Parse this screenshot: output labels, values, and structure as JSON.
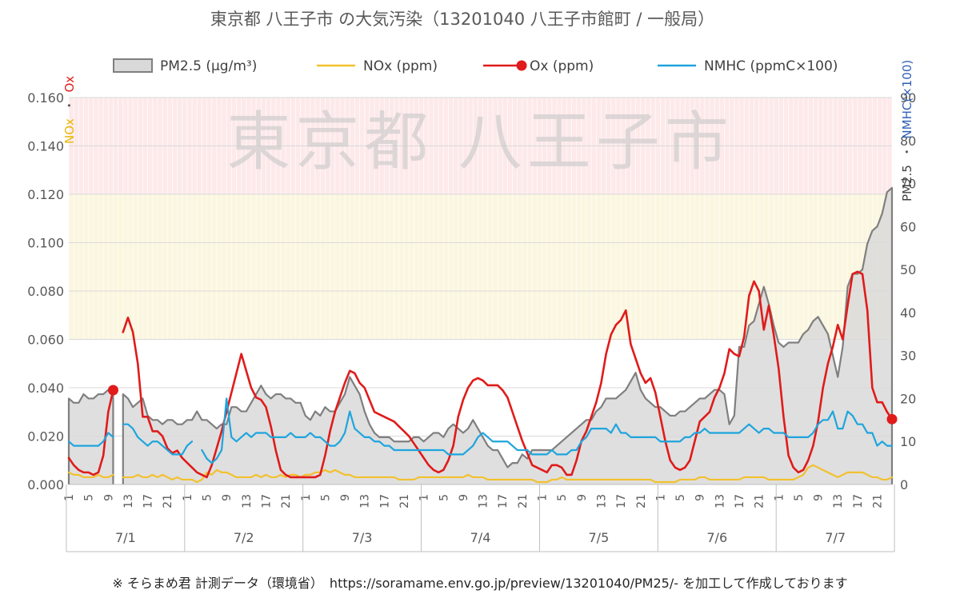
{
  "chart_data": {
    "type": "line",
    "title": "東京都 八王子市 の大気汚染（13201040 八王子市館町 / 一般局）",
    "watermark": "東京都 八王子市",
    "footer": "※ そらまめ君 計測データ（環境省）　https://soramame.env.go.jp/preview/13201040/PM25/- を加工して作成しております",
    "left_axis": {
      "label_part1": "NOx",
      "label_sep": "・",
      "label_part2": "Ox",
      "ylim": [
        0,
        0.16
      ],
      "ticks": [
        "0.000",
        "0.020",
        "0.040",
        "0.060",
        "0.080",
        "0.100",
        "0.120",
        "0.140",
        "0.160"
      ]
    },
    "right_axis": {
      "label_part1": "PM2.5",
      "label_sep": "・",
      "label_part2": "NMHC(×100)",
      "ylim": [
        0,
        90
      ],
      "ticks": [
        "0",
        "10",
        "20",
        "30",
        "40",
        "50",
        "60",
        "70",
        "80",
        "90"
      ]
    },
    "x_hour_ticks": [
      "1",
      "5",
      "9",
      "13",
      "17",
      "21"
    ],
    "days": [
      "7/1",
      "7/2",
      "7/3",
      "7/4",
      "7/5",
      "7/6",
      "7/7"
    ],
    "hours_per_day": 24,
    "bands": [
      {
        "from": 0.12,
        "to": 0.16,
        "color": "#fde9ea"
      },
      {
        "from": 0.06,
        "to": 0.12,
        "color": "#fbf6df"
      }
    ],
    "series": [
      {
        "name": "PM2.5 (µg/m³)",
        "axis": "right",
        "style": "area",
        "color": "#7f7f7f",
        "fill": "#d9d9d9",
        "values": [
          20,
          19,
          19,
          21,
          20,
          20,
          21,
          21,
          22,
          22,
          null,
          21,
          20,
          18,
          19,
          20,
          16,
          15,
          15,
          14,
          15,
          15,
          14,
          14,
          15,
          15,
          17,
          15,
          15,
          14,
          13,
          14,
          14,
          18,
          18,
          17,
          17,
          19,
          21,
          23,
          21,
          20,
          21,
          21,
          20,
          20,
          19,
          19,
          16,
          15,
          17,
          16,
          18,
          17,
          17,
          19,
          21,
          25,
          23,
          21,
          17,
          14,
          12,
          11,
          11,
          11,
          10,
          10,
          10,
          10,
          11,
          11,
          10,
          11,
          12,
          12,
          11,
          13,
          14,
          13,
          12,
          13,
          15,
          13,
          11,
          9,
          8,
          8,
          6,
          4,
          5,
          5,
          7,
          6,
          8,
          8,
          8,
          8,
          8,
          9,
          10,
          11,
          12,
          13,
          14,
          15,
          15,
          17,
          18,
          20,
          20,
          20,
          21,
          22,
          24,
          26,
          22,
          20,
          19,
          18,
          18,
          17,
          16,
          16,
          17,
          17,
          18,
          19,
          20,
          20,
          21,
          22,
          22,
          21,
          14,
          16,
          32,
          32,
          37,
          38,
          42,
          46,
          42,
          37,
          33,
          32,
          33,
          33,
          33,
          35,
          36,
          38,
          39,
          37,
          35,
          30,
          25,
          32,
          46,
          49,
          49,
          50,
          56,
          59,
          60,
          63,
          68,
          69
        ]
      },
      {
        "name": "NOx (ppm)",
        "axis": "left",
        "style": "line",
        "color": "#f2c12e",
        "values": [
          0.005,
          0.004,
          0.004,
          0.003,
          0.003,
          0.003,
          0.004,
          0.003,
          0.003,
          0.004,
          null,
          0.003,
          0.003,
          0.003,
          0.004,
          0.003,
          0.003,
          0.004,
          0.003,
          0.004,
          0.003,
          0.002,
          0.003,
          0.002,
          0.002,
          0.002,
          0.001,
          0.002,
          0.005,
          0.004,
          0.006,
          0.005,
          0.005,
          0.004,
          0.003,
          0.003,
          0.003,
          0.003,
          0.004,
          0.003,
          0.004,
          0.003,
          0.003,
          0.004,
          0.003,
          0.004,
          0.004,
          0.003,
          0.004,
          0.004,
          0.005,
          0.005,
          0.006,
          0.005,
          0.006,
          0.005,
          0.004,
          0.004,
          0.003,
          0.003,
          0.003,
          0.003,
          0.003,
          0.003,
          0.003,
          0.003,
          0.003,
          0.002,
          0.002,
          0.002,
          0.002,
          0.003,
          0.003,
          0.003,
          0.003,
          0.003,
          0.003,
          0.003,
          0.003,
          0.003,
          0.003,
          0.004,
          0.003,
          0.003,
          0.003,
          0.002,
          0.002,
          0.002,
          0.002,
          0.002,
          0.002,
          0.002,
          0.002,
          0.002,
          0.002,
          0.001,
          0.001,
          0.001,
          0.002,
          0.002,
          0.003,
          0.002,
          0.002,
          0.002,
          0.002,
          0.002,
          0.002,
          0.002,
          0.002,
          0.002,
          0.002,
          0.002,
          0.002,
          0.002,
          0.002,
          0.002,
          0.002,
          0.002,
          0.002,
          0.001,
          0.001,
          0.001,
          0.001,
          0.001,
          0.002,
          0.002,
          0.002,
          0.002,
          0.003,
          0.003,
          0.002,
          0.002,
          0.002,
          0.002,
          0.002,
          0.002,
          0.002,
          0.003,
          0.003,
          0.003,
          0.003,
          0.003,
          0.002,
          0.002,
          0.002,
          0.002,
          0.002,
          0.002,
          0.003,
          0.004,
          0.007,
          0.008,
          0.007,
          0.006,
          0.005,
          0.004,
          0.003,
          0.004,
          0.005,
          0.005,
          0.005,
          0.005,
          0.004,
          0.003,
          0.003,
          0.002,
          0.002,
          0.003
        ]
      },
      {
        "name": "Ox (ppm)",
        "axis": "left",
        "style": "line",
        "color": "#e01b1b",
        "marker_ends": true,
        "values": [
          0.011,
          0.008,
          0.006,
          0.005,
          0.005,
          0.004,
          0.005,
          0.012,
          0.03,
          0.039,
          null,
          0.063,
          0.069,
          0.063,
          0.05,
          0.028,
          0.028,
          0.022,
          0.022,
          0.02,
          0.015,
          0.013,
          0.014,
          0.011,
          0.009,
          0.007,
          0.005,
          0.004,
          0.003,
          0.008,
          0.015,
          0.022,
          0.03,
          0.038,
          0.046,
          0.054,
          0.047,
          0.04,
          0.036,
          0.035,
          0.032,
          0.024,
          0.014,
          0.006,
          0.004,
          0.003,
          0.003,
          0.003,
          0.003,
          0.003,
          0.003,
          0.004,
          0.012,
          0.022,
          0.03,
          0.036,
          0.042,
          0.047,
          0.046,
          0.042,
          0.04,
          0.035,
          0.03,
          0.029,
          0.028,
          0.027,
          0.026,
          0.024,
          0.022,
          0.02,
          0.017,
          0.014,
          0.011,
          0.008,
          0.006,
          0.005,
          0.006,
          0.01,
          0.016,
          0.028,
          0.035,
          0.04,
          0.043,
          0.044,
          0.043,
          0.041,
          0.041,
          0.041,
          0.039,
          0.036,
          0.03,
          0.024,
          0.018,
          0.013,
          0.008,
          0.007,
          0.006,
          0.005,
          0.008,
          0.008,
          0.007,
          0.004,
          0.004,
          0.01,
          0.018,
          0.022,
          0.028,
          0.034,
          0.042,
          0.054,
          0.062,
          0.066,
          0.068,
          0.072,
          0.058,
          0.052,
          0.046,
          0.042,
          0.044,
          0.038,
          0.028,
          0.018,
          0.01,
          0.007,
          0.006,
          0.007,
          0.01,
          0.018,
          0.026,
          0.028,
          0.03,
          0.036,
          0.04,
          0.046,
          0.056,
          0.054,
          0.053,
          0.061,
          0.078,
          0.084,
          0.08,
          0.064,
          0.074,
          0.062,
          0.048,
          0.028,
          0.012,
          0.007,
          0.005,
          0.006,
          0.01,
          0.016,
          0.026,
          0.04,
          0.05,
          0.057,
          0.066,
          0.06,
          0.074,
          0.087,
          0.088,
          0.087,
          0.072,
          0.04,
          0.034,
          0.034,
          0.03,
          0.027
        ]
      },
      {
        "name": "NMHC (ppmC×100)",
        "axis": "right",
        "style": "line",
        "color": "#1ea5dd",
        "values": [
          10,
          9,
          9,
          9,
          9,
          9,
          9,
          10,
          12,
          11,
          null,
          14,
          14,
          13,
          11,
          10,
          9,
          10,
          10,
          9,
          8,
          7,
          7,
          7,
          9,
          10,
          null,
          8,
          6,
          5,
          6,
          8,
          20,
          11,
          10,
          11,
          12,
          11,
          12,
          12,
          12,
          11,
          11,
          11,
          11,
          12,
          11,
          11,
          11,
          12,
          11,
          11,
          10,
          9,
          9,
          10,
          12,
          17,
          13,
          12,
          11,
          11,
          10,
          10,
          9,
          9,
          8,
          8,
          8,
          8,
          8,
          8,
          8,
          8,
          8,
          8,
          8,
          7,
          7,
          7,
          7,
          8,
          9,
          11,
          12,
          11,
          10,
          10,
          10,
          10,
          9,
          8,
          8,
          8,
          7,
          7,
          7,
          7,
          8,
          7,
          7,
          7,
          8,
          8,
          10,
          11,
          13,
          13,
          13,
          13,
          12,
          14,
          12,
          12,
          11,
          11,
          11,
          11,
          11,
          11,
          10,
          10,
          10,
          10,
          10,
          11,
          11,
          12,
          12,
          13,
          12,
          12,
          12,
          12,
          12,
          12,
          12,
          13,
          14,
          13,
          12,
          13,
          13,
          12,
          12,
          12,
          11,
          11,
          11,
          11,
          11,
          12,
          14,
          15,
          15,
          17,
          13,
          13,
          17,
          16,
          14,
          14,
          12,
          12,
          9,
          10,
          9,
          9
        ]
      }
    ]
  }
}
